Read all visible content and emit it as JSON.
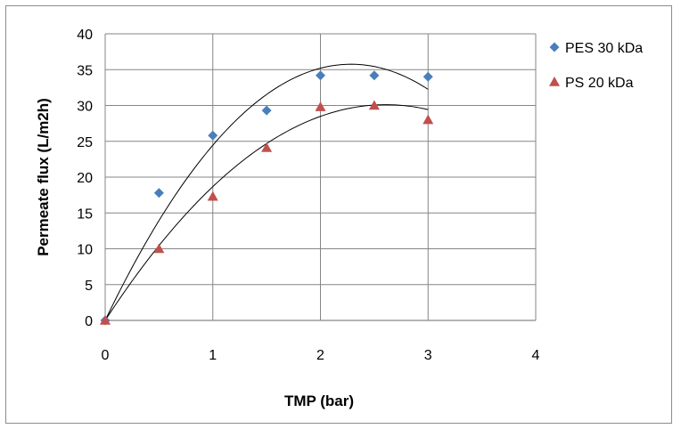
{
  "chart_data": {
    "type": "scatter",
    "xlabel": "TMP (bar)",
    "ylabel": "Permeate flux (L/m2h)",
    "xlim": [
      0,
      4
    ],
    "ylim": [
      0,
      40
    ],
    "xticks": [
      0,
      1,
      2,
      3,
      4
    ],
    "yticks": [
      0,
      5,
      10,
      15,
      20,
      25,
      30,
      35,
      40
    ],
    "grid": true,
    "legend_position": "right",
    "series": [
      {
        "name": "PES 30 kDa",
        "marker": "diamond",
        "color": "#4a7ebb",
        "x": [
          0,
          0.5,
          1,
          1.5,
          2,
          2.5,
          3
        ],
        "y": [
          0,
          17.8,
          25.8,
          29.3,
          34.2,
          34.2,
          34.0
        ],
        "trendline": {
          "type": "polynomial",
          "order": 2,
          "coefficients": [
            0,
            31.3,
            -6.85
          ]
        }
      },
      {
        "name": "PS 20 kDa",
        "marker": "triangle",
        "color": "#c0504d",
        "x": [
          0,
          0.5,
          1,
          1.5,
          2,
          2.5,
          3
        ],
        "y": [
          0,
          10.0,
          17.3,
          24.1,
          29.8,
          30.0,
          28.0
        ],
        "trendline": {
          "type": "polynomial",
          "order": 2,
          "coefficients": [
            0,
            23.1,
            -4.43
          ]
        }
      }
    ]
  }
}
